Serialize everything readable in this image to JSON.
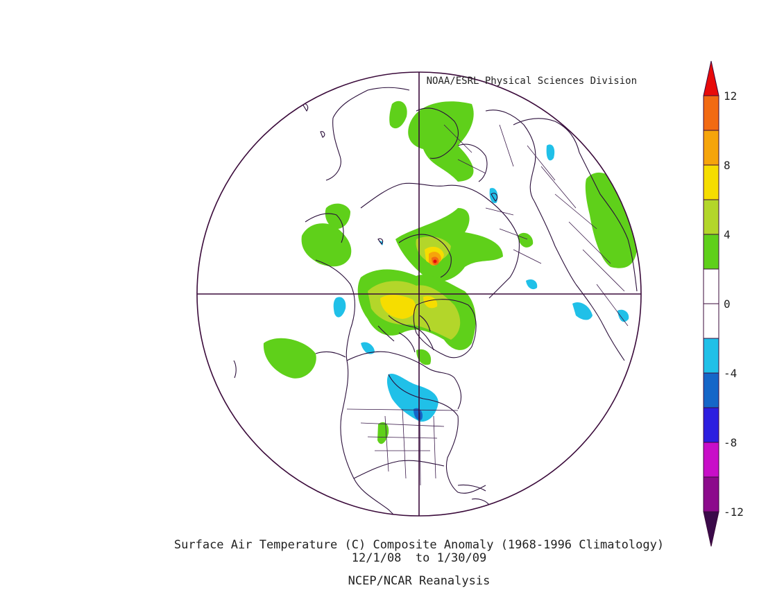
{
  "credit": "NOAA/ESRL Physical Sciences Division",
  "caption": {
    "line1": "Surface Air Temperature (C) Composite Anomaly (1968-1996 Climatology)",
    "line2": "12/1/08  to 1/30/09",
    "line3": "NCEP/NCAR Reanalysis"
  },
  "colorbar": {
    "labels": [
      "12",
      "8",
      "4",
      "0",
      "-4",
      "-8",
      "-12"
    ],
    "bins": [
      {
        "range": "10 to 12",
        "color": "#f26a13"
      },
      {
        "range": "8 to 10",
        "color": "#f6a40b"
      },
      {
        "range": "6 to 8",
        "color": "#f6dd00"
      },
      {
        "range": "4 to 6",
        "color": "#b3d62a"
      },
      {
        "range": "2 to 4",
        "color": "#5fd01a"
      },
      {
        "range": "0 to 2",
        "color": "#ffffff"
      },
      {
        "range": "-2 to 0",
        "color": "#ffffff"
      },
      {
        "range": "-4 to -2",
        "color": "#20c0e8"
      },
      {
        "range": "-6 to -4",
        "color": "#1566c8"
      },
      {
        "range": "-8 to -6",
        "color": "#2d1ee0"
      },
      {
        "range": "-10 to -8",
        "color": "#c80ec8"
      },
      {
        "range": "-12 to -10",
        "color": "#8c0a8c"
      }
    ],
    "over_color": "#e80a0a",
    "under_color": "#3b0a4a"
  }
}
